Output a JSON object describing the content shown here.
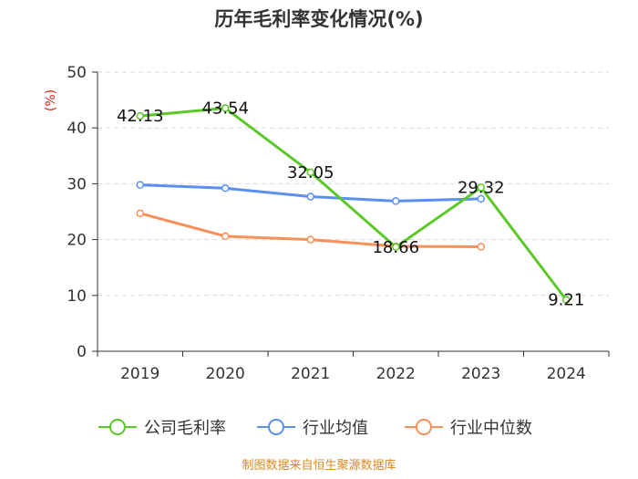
{
  "title": "历年毛利率变化情况(%)",
  "source": "制图数据来自恒生聚源数据库",
  "chart_data": {
    "type": "line",
    "title": "历年毛利率变化情况(%)",
    "ylabel": "(%)",
    "xlabel": "",
    "categories": [
      "2019",
      "2020",
      "2021",
      "2022",
      "2023",
      "2024"
    ],
    "ylim": [
      0,
      50
    ],
    "yticks": [
      0,
      10,
      20,
      30,
      40,
      50
    ],
    "grid": true,
    "legend_position": "bottom-center",
    "series": [
      {
        "name": "公司毛利率",
        "color": "#5cc828",
        "values": [
          42.13,
          43.54,
          32.05,
          18.66,
          29.32,
          9.21
        ],
        "labels": [
          "42.13",
          "43.54",
          "32.05",
          "18.66",
          "29.32",
          "9.21"
        ]
      },
      {
        "name": "行业均值",
        "color": "#5b8ff0",
        "values": [
          29.8,
          29.2,
          27.7,
          26.9,
          27.3,
          null
        ],
        "labels": []
      },
      {
        "name": "行业中位数",
        "color": "#f79058",
        "values": [
          24.7,
          20.6,
          20.0,
          18.8,
          18.7,
          null
        ],
        "labels": []
      }
    ]
  }
}
